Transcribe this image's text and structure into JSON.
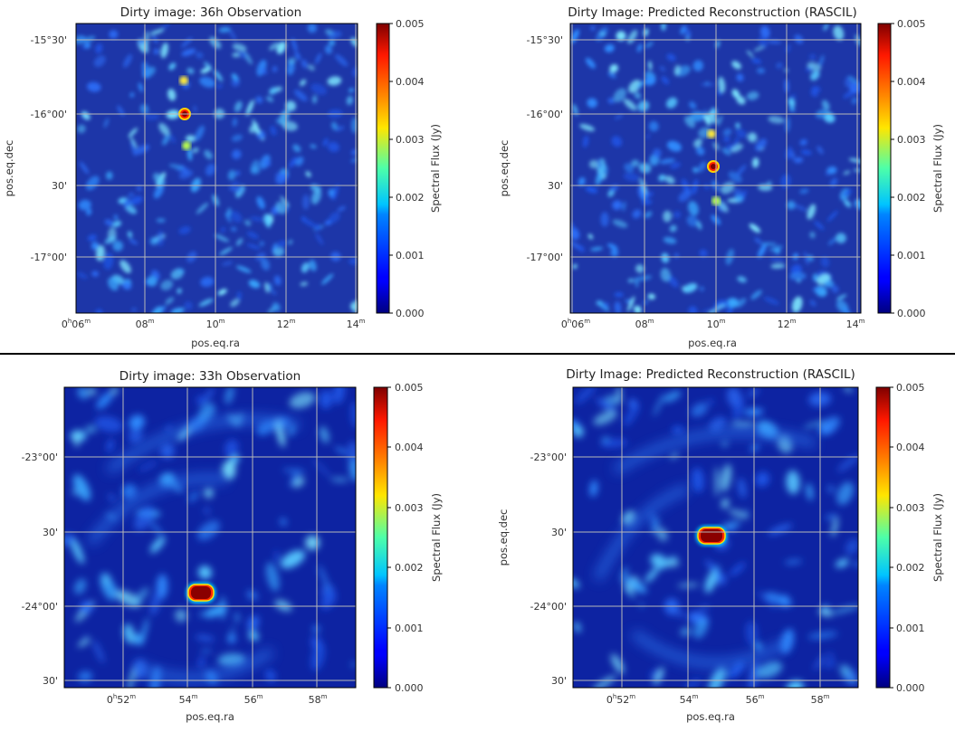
{
  "chart_data": [
    {
      "type": "heatmap",
      "title": "Dirty image: 36h Observation",
      "xlabel": "pos.eq.ra",
      "ylabel": "pos.eq.dec",
      "x_ticks": [
        {
          "main": "0",
          "hsup": "h",
          "min": "06",
          "msup": "m"
        },
        {
          "min": "08",
          "msup": "m"
        },
        {
          "min": "10",
          "msup": "m"
        },
        {
          "min": "12",
          "msup": "m"
        },
        {
          "min": "14",
          "msup": "m"
        }
      ],
      "y_ticks": [
        "-15°30'",
        "-16°00'",
        "30'",
        "-17°00'"
      ],
      "colorbar": {
        "label": "Spectral Flux (Jy)",
        "ticks": [
          "0.005",
          "0.004",
          "0.003",
          "0.002",
          "0.001",
          "0.000"
        ],
        "range": [
          0.0,
          0.005
        ],
        "colormap": "jet"
      },
      "grid": true,
      "bright_sources": [
        {
          "ra": "0h09m08s",
          "dec": "-16°00'",
          "flux": 0.005
        },
        {
          "ra": "0h09m12s",
          "dec": "-15°48'",
          "flux": 0.003
        },
        {
          "ra": "0h09m15s",
          "dec": "-16°13'",
          "flux": 0.003
        }
      ]
    },
    {
      "type": "heatmap",
      "title": "Dirty Image: Predicted Reconstruction (RASCIL)",
      "xlabel": "pos.eq.ra",
      "ylabel": "pos.eq.dec",
      "x_ticks": [
        {
          "main": "0",
          "hsup": "h",
          "min": "06",
          "msup": "m"
        },
        {
          "min": "08",
          "msup": "m"
        },
        {
          "min": "10",
          "msup": "m"
        },
        {
          "min": "12",
          "msup": "m"
        },
        {
          "min": "14",
          "msup": "m"
        }
      ],
      "y_ticks": [
        "-15°30'",
        "-16°00'",
        "30'",
        "-17°00'"
      ],
      "colorbar": {
        "label": "Spectral Flux (Jy)",
        "ticks": [
          "0.005",
          "0.004",
          "0.003",
          "0.002",
          "0.001",
          "0.000"
        ],
        "range": [
          0.0,
          0.005
        ],
        "colormap": "jet"
      },
      "grid": true,
      "bright_sources": [
        {
          "ra": "0h09m50s",
          "dec": "-16°22'",
          "flux": 0.005
        },
        {
          "ra": "0h09m48s",
          "dec": "-16°08'",
          "flux": 0.003
        },
        {
          "ra": "0h09m52s",
          "dec": "-16°37'",
          "flux": 0.003
        }
      ]
    },
    {
      "type": "heatmap",
      "title": "Dirty image: 33h Observation",
      "xlabel": "pos.eq.ra",
      "ylabel": "",
      "x_ticks": [
        {
          "main": "0",
          "hsup": "h",
          "min": "52",
          "msup": "m"
        },
        {
          "min": "54",
          "msup": "m"
        },
        {
          "min": "56",
          "msup": "m"
        },
        {
          "min": "58",
          "msup": "m"
        }
      ],
      "y_ticks": [
        "-23°00'",
        "30'",
        "-24°00'",
        "30'"
      ],
      "colorbar": {
        "label": "Spectral Flux (Jy)",
        "ticks": [
          "0.005",
          "0.004",
          "0.003",
          "0.002",
          "0.001",
          "0.000"
        ],
        "range": [
          0.0,
          0.005
        ],
        "colormap": "jet"
      },
      "grid": true,
      "bright_sources": [
        {
          "ra": "0h54m25s",
          "dec": "-23°51'",
          "flux": 0.005
        }
      ]
    },
    {
      "type": "heatmap",
      "title": "Dirty Image: Predicted Reconstruction (RASCIL)",
      "xlabel": "pos.eq.ra",
      "ylabel": "pos.eq.dec",
      "x_ticks": [
        {
          "main": "0",
          "hsup": "h",
          "min": "52",
          "msup": "m"
        },
        {
          "min": "54",
          "msup": "m"
        },
        {
          "min": "56",
          "msup": "m"
        },
        {
          "min": "58",
          "msup": "m"
        }
      ],
      "y_ticks": [
        "-23°00'",
        "30'",
        "-24°00'",
        "30'"
      ],
      "colorbar": {
        "label": "Spectral Flux (Jy)",
        "ticks": [
          "0.005",
          "0.004",
          "0.003",
          "0.002",
          "0.001",
          "0.000"
        ],
        "range": [
          0.0,
          0.005
        ],
        "colormap": "jet"
      },
      "grid": true,
      "bright_sources": [
        {
          "ra": "0h54m45s",
          "dec": "-23°30'",
          "flux": 0.005
        }
      ]
    }
  ]
}
